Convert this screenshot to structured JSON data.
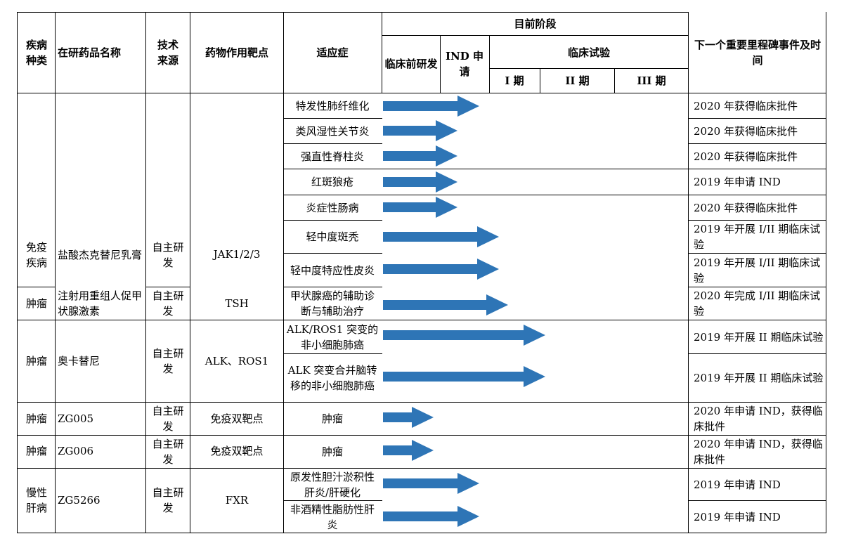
{
  "headers": {
    "disease": "疾病种类",
    "drug": "在研药品名称",
    "source": "技术来源",
    "target": "药物作用靶点",
    "indication": "适应症",
    "stage": "目前阶段",
    "preclinical": "临床前研发",
    "ind": "IND 申请",
    "clinical": "临床试验",
    "phase1": "I 期",
    "phase2": "II 期",
    "phase3": "III 期",
    "milestone": "下一个重要里程碑事件及时间"
  },
  "drugs": [
    {
      "disease": "免疫疾病",
      "name": "盐酸杰克替尼乳膏",
      "source": "自主研发",
      "target": "JAK1/2/3"
    },
    {
      "disease": "肿瘤",
      "name": "注射用重组人促甲状腺激素",
      "source": "自主研发",
      "target": "TSH"
    },
    {
      "disease": "肿瘤",
      "name": "奥卡替尼",
      "source": "自主研发",
      "target": "ALK、ROS1"
    },
    {
      "disease": "肿瘤",
      "name": "ZG005",
      "source": "自主研发",
      "target": "免疫双靶点"
    },
    {
      "disease": "肿瘤",
      "name": "ZG006",
      "source": "自主研发",
      "target": "免疫双靶点"
    },
    {
      "disease": "慢性肝病",
      "name": "ZG5266",
      "source": "自主研发",
      "target": "FXR"
    }
  ],
  "indications": [
    {
      "indication": "特发性肺纤维化",
      "milestone": "2020 年获得临床批件",
      "progress_stage": "preclinical-to-ind"
    },
    {
      "indication": "类风湿性关节炎",
      "milestone": "2020 年获得临床批件",
      "progress_stage": "preclinical"
    },
    {
      "indication": "强直性脊柱炎",
      "milestone": "2020 年获得临床批件",
      "progress_stage": "preclinical"
    },
    {
      "indication": "红斑狼疮",
      "milestone": "2019 年申请 IND",
      "progress_stage": "preclinical"
    },
    {
      "indication": "炎症性肠病",
      "milestone": "2020 年获得临床批件",
      "progress_stage": "preclinical"
    },
    {
      "indication": "轻中度斑秃",
      "milestone": "2019 年开展 I/II 期临床试验",
      "progress_stage": "ind"
    },
    {
      "indication": "轻中度特应性皮炎",
      "milestone": "2019 年开展 I/II 期临床试验",
      "progress_stage": "ind"
    },
    {
      "indication": "甲状腺癌的辅助诊断与辅助治疗",
      "milestone": "2020 年完成 I/II 期临床试验",
      "progress_stage": "phase1"
    },
    {
      "indication": "ALK/ROS1 突变的非小细胞肺癌",
      "milestone": "2019 年开展 II 期临床试验",
      "progress_stage": "phase1"
    },
    {
      "indication": "ALK 突变合并脑转移的非小细胞肺癌",
      "milestone": "2019 年开展 II 期临床试验",
      "progress_stage": "phase1"
    },
    {
      "indication": "肿瘤",
      "milestone": "2020 年申请 IND，获得临床批件",
      "progress_stage": "preclinical"
    },
    {
      "indication": "肿瘤",
      "milestone": "2020 年申请 IND，获得临床批件",
      "progress_stage": "preclinical"
    },
    {
      "indication": "原发性胆汁淤积性肝炎/肝硬化",
      "milestone": "2019 年申请 IND",
      "progress_stage": "preclinical-to-ind"
    },
    {
      "indication": "非酒精性脂肪性肝炎",
      "milestone": "2019 年申请 IND",
      "progress_stage": "preclinical-to-ind"
    }
  ],
  "colors": {
    "arrow": "#2E75B6",
    "border": "#000000"
  }
}
